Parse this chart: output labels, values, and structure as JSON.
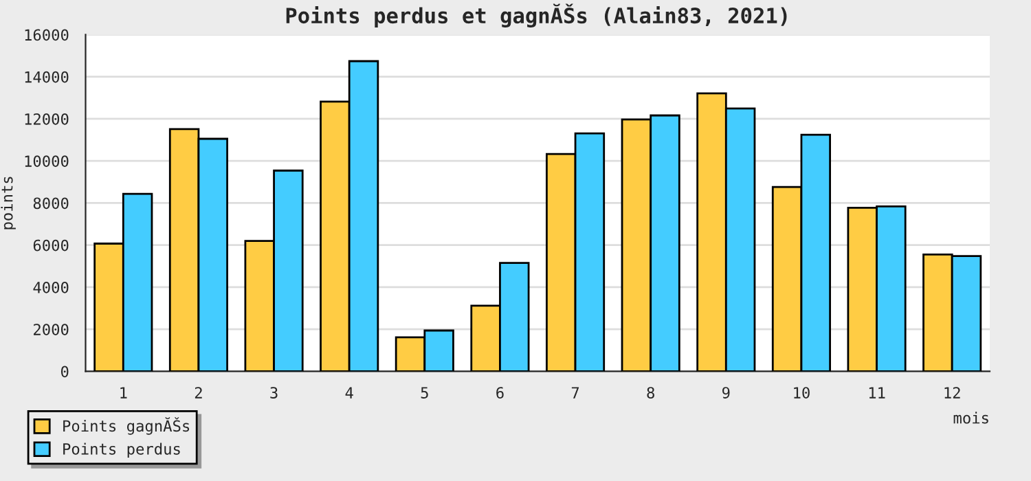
{
  "chart_data": {
    "type": "bar",
    "title": "Points perdus et gagnĂŠs (Alain83, 2021)",
    "xlabel": "mois",
    "ylabel": "points",
    "categories": [
      "1",
      "2",
      "3",
      "4",
      "5",
      "6",
      "7",
      "8",
      "9",
      "10",
      "11",
      "12"
    ],
    "series": [
      {
        "name": "Points gagnĂŠs",
        "color": "#ffcc44",
        "values": [
          6070,
          11510,
          6200,
          12820,
          1620,
          3120,
          10330,
          11970,
          13210,
          8760,
          7770,
          5550
        ]
      },
      {
        "name": "Points perdus",
        "color": "#44ccff",
        "values": [
          8430,
          11050,
          9540,
          14740,
          1940,
          5150,
          11310,
          12160,
          12490,
          11240,
          7840,
          5480
        ]
      }
    ],
    "ylim": [
      0,
      16000
    ],
    "yticks": [
      0,
      2000,
      4000,
      6000,
      8000,
      10000,
      12000,
      14000,
      16000
    ],
    "grid": "y",
    "legend": "bottom left"
  }
}
